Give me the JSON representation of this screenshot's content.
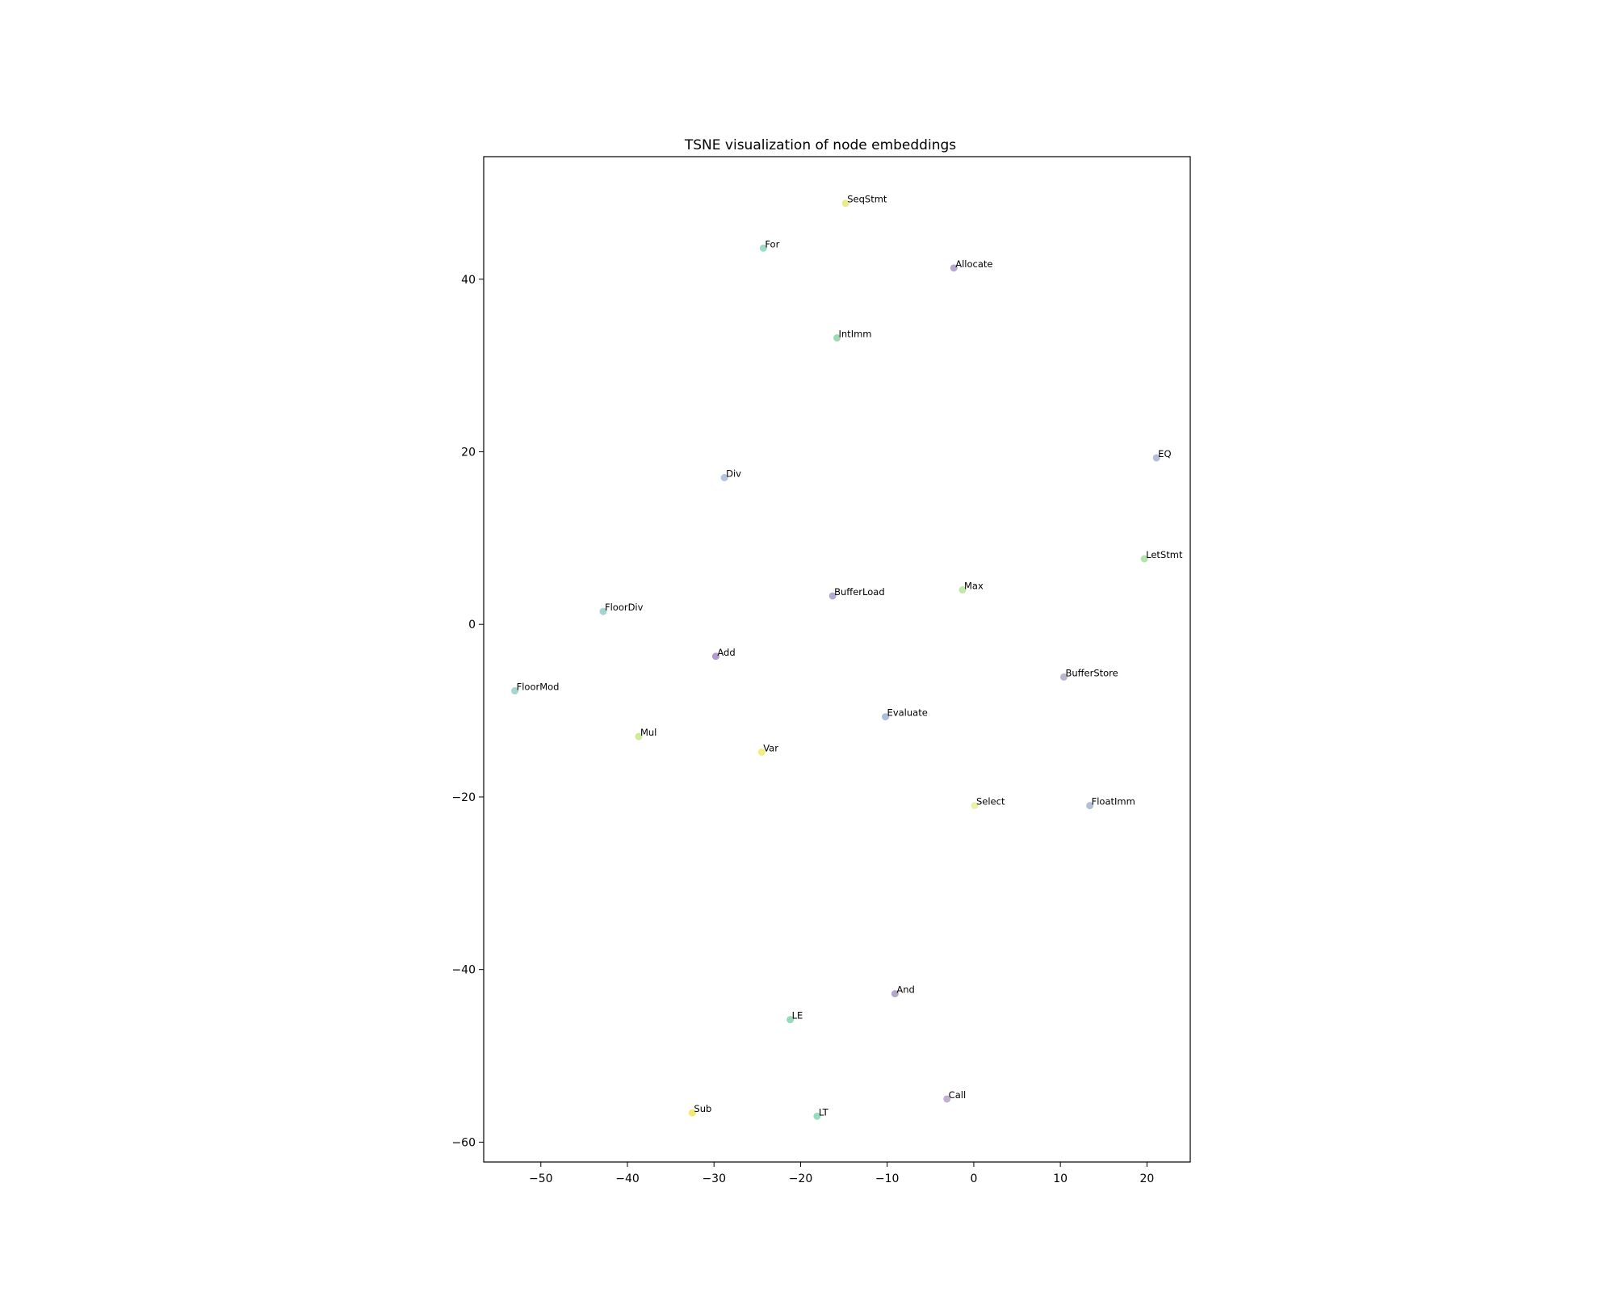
{
  "chart_data": {
    "type": "scatter",
    "title": "TSNE visualization of node embeddings",
    "xlabel": "",
    "ylabel": "",
    "xlim": [
      -56.6,
      25
    ],
    "ylim": [
      -62.3,
      54.2
    ],
    "xticks": [
      -50,
      -40,
      -30,
      -20,
      -10,
      0,
      10,
      20
    ],
    "yticks": [
      -60,
      -40,
      -20,
      0,
      20,
      40
    ],
    "grid": false,
    "points": [
      {
        "label": "SeqStmt",
        "x": -14.8,
        "y": 48.8,
        "color": "#e6e87a"
      },
      {
        "label": "For",
        "x": -24.3,
        "y": 43.6,
        "color": "#8ed4bf"
      },
      {
        "label": "Allocate",
        "x": -2.3,
        "y": 41.3,
        "color": "#a99ac8"
      },
      {
        "label": "IntImm",
        "x": -15.8,
        "y": 33.2,
        "color": "#8ed4a8"
      },
      {
        "label": "EQ",
        "x": 21.1,
        "y": 19.3,
        "color": "#aab2cc"
      },
      {
        "label": "Div",
        "x": -28.8,
        "y": 17.0,
        "color": "#a9b8d6"
      },
      {
        "label": "LetStmt",
        "x": 19.7,
        "y": 7.6,
        "color": "#a8dea0"
      },
      {
        "label": "Max",
        "x": -1.3,
        "y": 4.0,
        "color": "#b6e29a"
      },
      {
        "label": "BufferLoad",
        "x": -16.3,
        "y": 3.3,
        "color": "#a49acb"
      },
      {
        "label": "FloorDiv",
        "x": -42.8,
        "y": 1.5,
        "color": "#94ccc9"
      },
      {
        "label": "Add",
        "x": -29.8,
        "y": -3.7,
        "color": "#a58ac6"
      },
      {
        "label": "BufferStore",
        "x": 10.4,
        "y": -6.1,
        "color": "#b0a8ca"
      },
      {
        "label": "FloorMod",
        "x": -53.0,
        "y": -7.7,
        "color": "#94cfc6"
      },
      {
        "label": "Evaluate",
        "x": -10.2,
        "y": -10.7,
        "color": "#9fb2d4"
      },
      {
        "label": "Mul",
        "x": -38.7,
        "y": -13.0,
        "color": "#c6e68a"
      },
      {
        "label": "Var",
        "x": -24.5,
        "y": -14.8,
        "color": "#f2ea6a"
      },
      {
        "label": "Select",
        "x": 0.1,
        "y": -21.0,
        "color": "#e8ef9a"
      },
      {
        "label": "FloatImm",
        "x": 13.4,
        "y": -21.0,
        "color": "#a6b6cc"
      },
      {
        "label": "And",
        "x": -9.1,
        "y": -42.8,
        "color": "#a596c2"
      },
      {
        "label": "LE",
        "x": -21.2,
        "y": -45.8,
        "color": "#84d4ae"
      },
      {
        "label": "Call",
        "x": -3.1,
        "y": -55.0,
        "color": "#b6a2cc"
      },
      {
        "label": "Sub",
        "x": -32.5,
        "y": -56.6,
        "color": "#f0e45c"
      },
      {
        "label": "LT",
        "x": -18.1,
        "y": -57.0,
        "color": "#84d8b4"
      }
    ]
  }
}
